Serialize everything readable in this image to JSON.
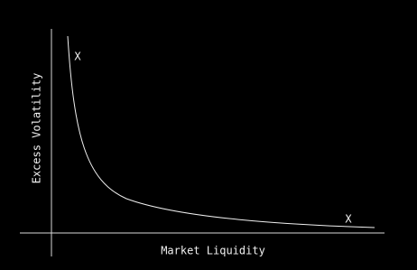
{
  "diagram": {
    "x_label": "Market Liquidity",
    "y_label": "Excess Volatility",
    "markers": [
      "X",
      "X"
    ]
  }
}
